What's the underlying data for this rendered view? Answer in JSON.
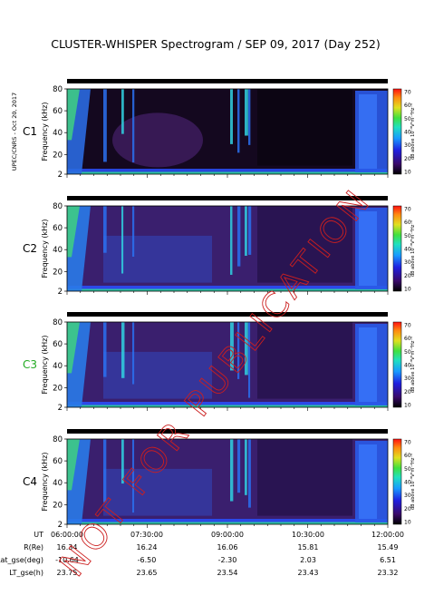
{
  "title": "CLUSTER-WHISPER Spectrogram / SEP 09, 2017 (Day 252)",
  "side_label": "UPEC/CNRS - Oct 20, 2017",
  "watermark": "NOT FOR PUBLICATION",
  "colors": {
    "spectrogram_low": "#1a0a2e",
    "spectrogram_mid": "#4b2a8a",
    "spectrogram_blue": "#2f4fe0",
    "spectrogram_green": "#3fe08a",
    "watermark": "#cc1f1f",
    "c3_label": "#22aa22"
  },
  "chart_data": [
    {
      "type": "heatmap",
      "spacecraft": "C1",
      "spacecraft_color": "#000000",
      "ylabel": "Frequency (kHz)",
      "ylim": [
        2,
        80
      ],
      "yticks": [
        "2",
        "20",
        "40",
        "60",
        "80"
      ],
      "xlim": [
        "06:00:00",
        "12:00:00"
      ],
      "colorbar": {
        "label": "dB above 10⁻⁸V²m⁻²Hz⁻¹",
        "ticks": [
          "70",
          "60",
          "50",
          "40",
          "30",
          "20",
          "10"
        ],
        "range": [
          10,
          70
        ]
      }
    },
    {
      "type": "heatmap",
      "spacecraft": "C2",
      "spacecraft_color": "#000000",
      "ylabel": "Frequency (kHz)",
      "ylim": [
        2,
        80
      ],
      "yticks": [
        "2",
        "20",
        "40",
        "60",
        "80"
      ],
      "xlim": [
        "06:00:00",
        "12:00:00"
      ],
      "colorbar": {
        "label": "dB above 10⁻⁸V²m⁻²Hz⁻¹",
        "ticks": [
          "70",
          "60",
          "50",
          "40",
          "30",
          "20",
          "10"
        ],
        "range": [
          10,
          70
        ]
      }
    },
    {
      "type": "heatmap",
      "spacecraft": "C3",
      "spacecraft_color": "#22aa22",
      "ylabel": "Frequency (kHz)",
      "ylim": [
        2,
        80
      ],
      "yticks": [
        "2",
        "20",
        "40",
        "60",
        "80"
      ],
      "xlim": [
        "06:00:00",
        "12:00:00"
      ],
      "colorbar": {
        "label": "dB above 10⁻⁸V²m⁻²Hz⁻¹",
        "ticks": [
          "70",
          "60",
          "50",
          "40",
          "30",
          "20",
          "10"
        ],
        "range": [
          10,
          70
        ]
      }
    },
    {
      "type": "heatmap",
      "spacecraft": "C4",
      "spacecraft_color": "#000000",
      "ylabel": "Frequency (kHz)",
      "ylim": [
        2,
        80
      ],
      "yticks": [
        "2",
        "20",
        "40",
        "60",
        "80"
      ],
      "xlim": [
        "06:00:00",
        "12:00:00"
      ],
      "colorbar": {
        "label": "dB above 10⁻⁸V²m⁻²Hz⁻¹",
        "ticks": [
          "70",
          "60",
          "50",
          "40",
          "30",
          "20",
          "10"
        ],
        "range": [
          10,
          70
        ]
      }
    }
  ],
  "ephemeris": {
    "rows": [
      {
        "label": "UT",
        "values": [
          "06:00:00",
          "07:30:00",
          "09:00:00",
          "10:30:00",
          "12:00:00"
        ]
      },
      {
        "label": "R(Re)",
        "values": [
          "16.34",
          "16.24",
          "16.06",
          "15.81",
          "15.49"
        ]
      },
      {
        "label": "Lat_gse(deg)",
        "values": [
          "-10.64",
          "-6.50",
          "-2.30",
          "2.03",
          "6.51"
        ]
      },
      {
        "label": "LT_gse(h)",
        "values": [
          "23.75",
          "23.65",
          "23.54",
          "23.43",
          "23.32"
        ]
      }
    ]
  }
}
